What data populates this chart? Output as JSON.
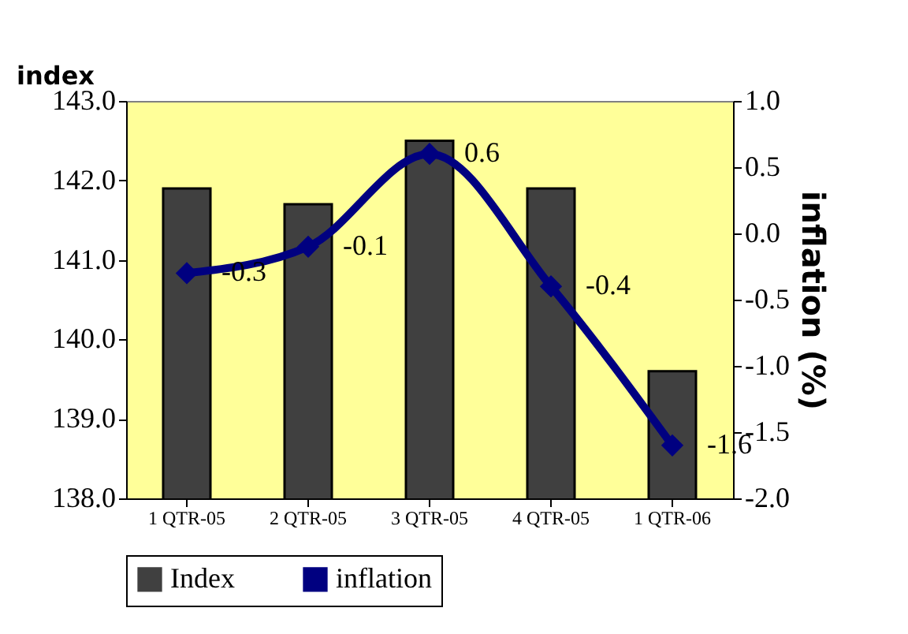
{
  "chart_data": {
    "type": "bar",
    "categories": [
      "1 QTR-05",
      "2 QTR-05",
      "3 QTR-05",
      "4 QTR-05",
      "1 QTR-06"
    ],
    "ylabel": "index",
    "y2label": "inflation (%)",
    "series": [
      {
        "name": "Index",
        "color": "#404040",
        "values": [
          141.9,
          141.7,
          142.5,
          141.9,
          139.6
        ]
      },
      {
        "name": "inflation",
        "type": "line",
        "axis": "y2",
        "color": "#000080",
        "values": [
          -0.3,
          -0.1,
          0.6,
          -0.4,
          -1.6
        ],
        "value_labels": [
          "-0.3",
          "-0.1",
          "0.6",
          "-0.4",
          "-1.6"
        ]
      }
    ],
    "ylim": [
      138,
      143
    ],
    "yticks": [
      {
        "value": 138,
        "label": "138.0"
      },
      {
        "value": 139,
        "label": "139.0"
      },
      {
        "value": 140,
        "label": "140.0"
      },
      {
        "value": 141,
        "label": "141.0"
      },
      {
        "value": 142,
        "label": "142.0"
      },
      {
        "value": 143,
        "label": "143.0"
      }
    ],
    "y2lim": [
      -2,
      1
    ],
    "y2ticks": [
      {
        "value": -2,
        "label": "-2.0"
      },
      {
        "value": -1.5,
        "label": "-1.5"
      },
      {
        "value": -1,
        "label": "-1.0"
      },
      {
        "value": -0.5,
        "label": "-0.5"
      },
      {
        "value": 0,
        "label": "0.0"
      },
      {
        "value": 0.5,
        "label": "0.5"
      },
      {
        "value": 1,
        "label": "1.0"
      }
    ],
    "marker": "diamond",
    "legend": "bottom",
    "grid": false
  }
}
